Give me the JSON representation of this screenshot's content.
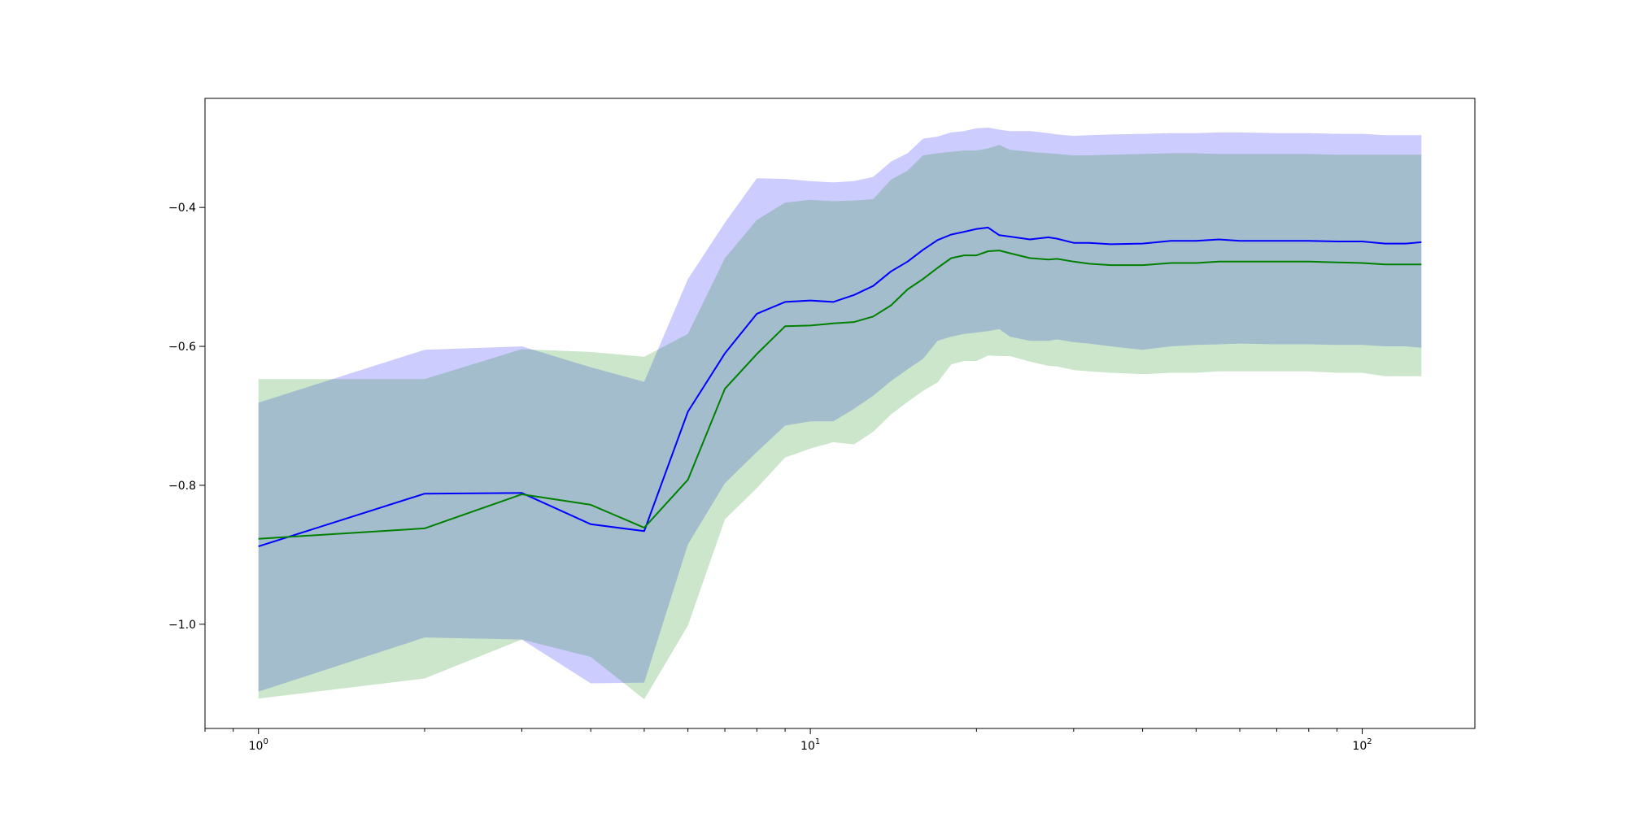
{
  "chart_data": {
    "type": "line",
    "x_scale": "log",
    "xlim": [
      0.8,
      160
    ],
    "ylim": [
      -1.15,
      -0.243
    ],
    "grid": false,
    "legend": "none",
    "title": "",
    "xlabel": "",
    "ylabel": "",
    "xticks_major": [
      {
        "value": 1,
        "base": "10",
        "exp": "0"
      },
      {
        "value": 10,
        "base": "10",
        "exp": "1"
      },
      {
        "value": 100,
        "base": "10",
        "exp": "2"
      }
    ],
    "xticks_minor": [
      0.8,
      0.9,
      2,
      3,
      4,
      5,
      6,
      7,
      8,
      9,
      20,
      30,
      40,
      50,
      60,
      70,
      80,
      90
    ],
    "yticks": [
      {
        "value": -0.4,
        "label": "−0.4"
      },
      {
        "value": -0.6,
        "label": "−0.6"
      },
      {
        "value": -0.8,
        "label": "−0.8"
      },
      {
        "value": -1.0,
        "label": "−1.0"
      }
    ],
    "series": [
      {
        "color": "#0000ff",
        "band_color": "#0000ff",
        "band_opacity": 0.2,
        "x": [
          1,
          2,
          3,
          4,
          5,
          6,
          7,
          8,
          9,
          10,
          11,
          12,
          13,
          14,
          15,
          16,
          17,
          18,
          19,
          20,
          21,
          22,
          23,
          25,
          27,
          28,
          30,
          32,
          35,
          40,
          45,
          50,
          55,
          60,
          70,
          80,
          90,
          100,
          110,
          120,
          128
        ],
        "y": [
          -0.888,
          -0.812,
          -0.811,
          -0.856,
          -0.866,
          -0.694,
          -0.61,
          -0.553,
          -0.536,
          -0.534,
          -0.536,
          -0.526,
          -0.513,
          -0.492,
          -0.478,
          -0.461,
          -0.447,
          -0.439,
          -0.435,
          -0.431,
          -0.429,
          -0.44,
          -0.442,
          -0.446,
          -0.443,
          -0.445,
          -0.451,
          -0.451,
          -0.453,
          -0.452,
          -0.448,
          -0.448,
          -0.446,
          -0.448,
          -0.448,
          -0.448,
          -0.449,
          -0.449,
          -0.452,
          -0.452,
          -0.45
        ],
        "upper": [
          -0.681,
          -0.605,
          -0.6,
          -0.63,
          -0.651,
          -0.503,
          -0.422,
          -0.358,
          -0.359,
          -0.362,
          -0.364,
          -0.362,
          -0.356,
          -0.334,
          -0.322,
          -0.301,
          -0.298,
          -0.292,
          -0.29,
          -0.286,
          -0.285,
          -0.288,
          -0.29,
          -0.29,
          -0.293,
          -0.295,
          -0.297,
          -0.296,
          -0.295,
          -0.294,
          -0.293,
          -0.293,
          -0.292,
          -0.292,
          -0.293,
          -0.293,
          -0.294,
          -0.294,
          -0.296,
          -0.296,
          -0.296
        ],
        "lower": [
          -1.097,
          -1.019,
          -1.022,
          -1.085,
          -1.084,
          -0.885,
          -0.797,
          -0.752,
          -0.714,
          -0.708,
          -0.708,
          -0.69,
          -0.671,
          -0.65,
          -0.633,
          -0.618,
          -0.592,
          -0.586,
          -0.582,
          -0.58,
          -0.578,
          -0.575,
          -0.586,
          -0.592,
          -0.592,
          -0.59,
          -0.594,
          -0.596,
          -0.6,
          -0.605,
          -0.6,
          -0.598,
          -0.597,
          -0.596,
          -0.597,
          -0.597,
          -0.598,
          -0.598,
          -0.6,
          -0.6,
          -0.602
        ]
      },
      {
        "color": "#008000",
        "band_color": "#008000",
        "band_opacity": 0.2,
        "x": [
          1,
          2,
          3,
          4,
          5,
          6,
          7,
          8,
          9,
          10,
          11,
          12,
          13,
          14,
          15,
          16,
          17,
          18,
          19,
          20,
          21,
          22,
          23,
          25,
          27,
          28,
          30,
          32,
          35,
          40,
          45,
          50,
          55,
          60,
          70,
          80,
          90,
          100,
          110,
          120,
          128
        ],
        "y": [
          -0.877,
          -0.862,
          -0.813,
          -0.828,
          -0.861,
          -0.792,
          -0.661,
          -0.611,
          -0.571,
          -0.57,
          -0.567,
          -0.565,
          -0.557,
          -0.541,
          -0.518,
          -0.503,
          -0.487,
          -0.473,
          -0.469,
          -0.469,
          -0.463,
          -0.462,
          -0.466,
          -0.473,
          -0.475,
          -0.474,
          -0.478,
          -0.481,
          -0.483,
          -0.483,
          -0.48,
          -0.48,
          -0.478,
          -0.478,
          -0.478,
          -0.478,
          -0.479,
          -0.48,
          -0.482,
          -0.482,
          -0.482
        ],
        "upper": [
          -0.647,
          -0.647,
          -0.604,
          -0.608,
          -0.615,
          -0.582,
          -0.473,
          -0.418,
          -0.393,
          -0.389,
          -0.391,
          -0.39,
          -0.388,
          -0.36,
          -0.347,
          -0.325,
          -0.322,
          -0.32,
          -0.318,
          -0.318,
          -0.315,
          -0.31,
          -0.317,
          -0.32,
          -0.322,
          -0.323,
          -0.325,
          -0.325,
          -0.324,
          -0.323,
          -0.322,
          -0.322,
          -0.323,
          -0.323,
          -0.323,
          -0.323,
          -0.324,
          -0.324,
          -0.324,
          -0.324,
          -0.324
        ],
        "lower": [
          -1.107,
          -1.078,
          -1.022,
          -1.047,
          -1.108,
          -1.002,
          -0.849,
          -0.804,
          -0.76,
          -0.747,
          -0.738,
          -0.741,
          -0.723,
          -0.698,
          -0.68,
          -0.664,
          -0.652,
          -0.626,
          -0.621,
          -0.621,
          -0.613,
          -0.614,
          -0.614,
          -0.622,
          -0.628,
          -0.629,
          -0.634,
          -0.636,
          -0.638,
          -0.64,
          -0.638,
          -0.638,
          -0.636,
          -0.636,
          -0.636,
          -0.636,
          -0.638,
          -0.638,
          -0.643,
          -0.643,
          -0.643
        ]
      }
    ]
  }
}
